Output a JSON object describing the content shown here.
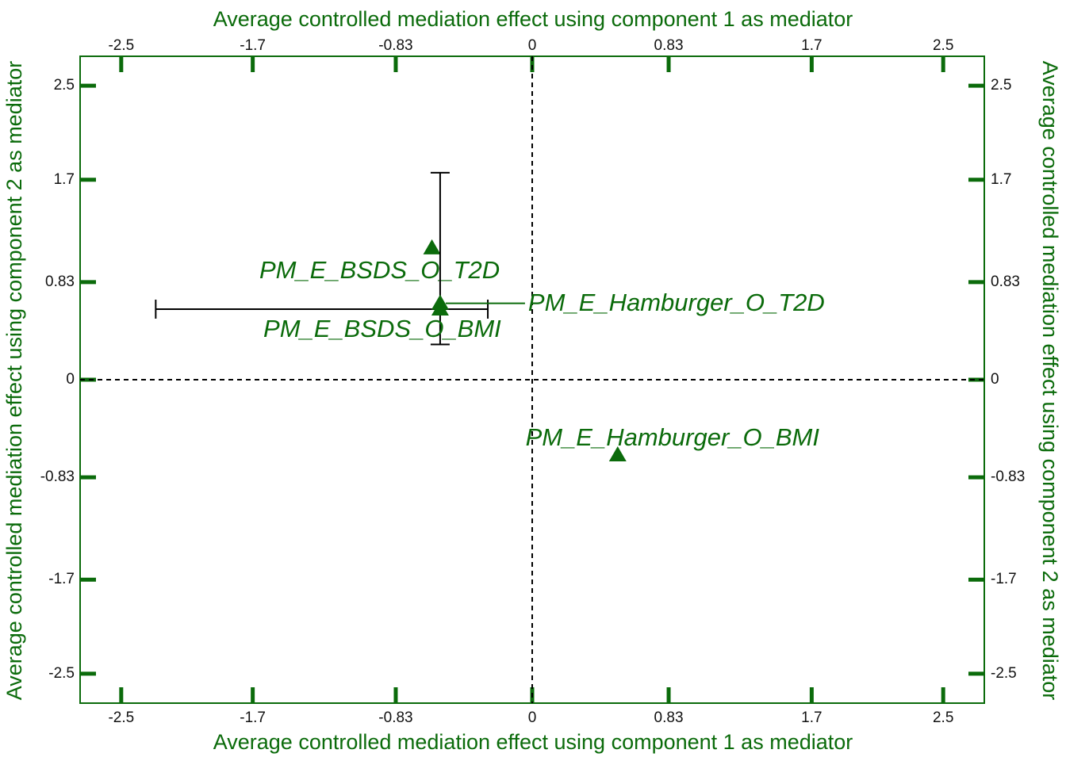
{
  "chart_data": {
    "type": "scatter",
    "xlabel": "Average controlled mediation effect using component 1 as mediator",
    "ylabel": "Average controlled mediation effect using component 2 as mediator",
    "labels": [
      "PM_E_BSDS_O_T2D",
      "PM_E_BSDS_O_BMI",
      "PM_E_Hamburger_O_T2D",
      "PM_E_Hamburger_O_BMI"
    ],
    "x": [
      -0.61,
      -0.56,
      -0.56,
      0.52
    ],
    "values": [
      1.12,
      0.6,
      0.65,
      -0.64
    ],
    "x_error_low": [
      null,
      -2.29,
      null,
      null
    ],
    "x_error_high": [
      null,
      -0.27,
      null,
      null
    ],
    "y_error_low": [
      null,
      0.3,
      null,
      null
    ],
    "y_error_high": [
      null,
      1.76,
      null,
      null
    ],
    "color": "#0b6b0b",
    "xlim": [
      -2.75,
      2.75
    ],
    "ylim": [
      -2.75,
      2.75
    ],
    "xticks": [
      -2.5,
      -1.7,
      -0.83,
      0,
      0.83,
      1.7,
      2.5
    ],
    "yticks": [
      -2.5,
      -1.7,
      -0.83,
      0,
      0.83,
      1.7,
      2.5
    ]
  }
}
